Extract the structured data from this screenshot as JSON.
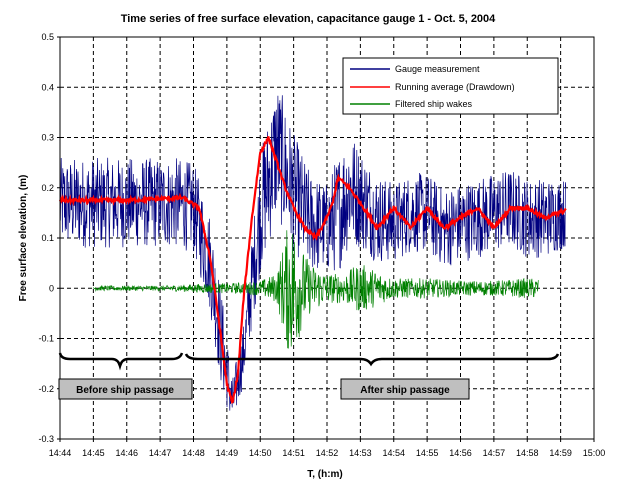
{
  "chart_data": {
    "type": "line",
    "title": "Time series of free surface elevation, capacitance gauge 1 - Oct. 5,  2004",
    "xlabel": "T, (h:m)",
    "ylabel": "Free surface elevation, (m)",
    "xlim": [
      "14:44",
      "15:00"
    ],
    "ylim": [
      -0.3,
      0.5
    ],
    "x_ticks": [
      "14:44",
      "14:45",
      "14:46",
      "14:47",
      "14:48",
      "14:49",
      "14:50",
      "14:51",
      "14:52",
      "14:53",
      "14:54",
      "14:55",
      "14:56",
      "14:57",
      "14:58",
      "14:59",
      "15:00"
    ],
    "y_ticks": [
      "0.5",
      "0.4",
      "0.3",
      "0.2",
      "0.1",
      "0",
      "-0.1",
      "-0.2",
      "-0.3"
    ],
    "grid": "dashed",
    "legend_position": "top-right",
    "series": [
      {
        "name": "Gauge measurement",
        "color": "#000080",
        "x": [
          "14:44",
          "14:46",
          "14:47:30",
          "14:48",
          "14:48:30",
          "14:48:50",
          "14:49:10",
          "14:49:30",
          "14:50",
          "14:50:30",
          "14:51",
          "14:51:30",
          "14:52",
          "14:52:20",
          "14:52:40",
          "14:53",
          "14:53:30",
          "14:54",
          "14:54:30",
          "14:55",
          "14:55:30",
          "14:56",
          "14:56:30",
          "14:57",
          "14:57:30",
          "14:58",
          "14:58:30",
          "14:59:10"
        ],
        "values": [
          0.17,
          0.17,
          0.17,
          0.16,
          0.05,
          -0.1,
          -0.23,
          -0.13,
          0.15,
          0.28,
          0.19,
          0.13,
          0.12,
          0.15,
          0.2,
          0.18,
          0.14,
          0.13,
          0.15,
          0.15,
          0.12,
          0.13,
          0.14,
          0.15,
          0.16,
          0.14,
          0.14,
          0.15
        ],
        "envelope": [
          0.09,
          0.09,
          0.09,
          0.09,
          0.1,
          0.1,
          0.05,
          0.06,
          0.12,
          0.14,
          0.12,
          0.1,
          0.09,
          0.12,
          0.12,
          0.1,
          0.09,
          0.08,
          0.08,
          0.08,
          0.08,
          0.08,
          0.08,
          0.08,
          0.08,
          0.08,
          0.08,
          0.07
        ]
      },
      {
        "name": "Running average (Drawdown)",
        "color": "#ff0000",
        "x": [
          "14:44",
          "14:45",
          "14:46",
          "14:47",
          "14:47:40",
          "14:48:10",
          "14:48:30",
          "14:48:45",
          "14:49",
          "14:49:10",
          "14:49:20",
          "14:49:30",
          "14:49:45",
          "14:50",
          "14:50:15",
          "14:50:30",
          "14:50:45",
          "14:51",
          "14:51:20",
          "14:51:40",
          "14:52",
          "14:52:10",
          "14:52:20",
          "14:52:40",
          "14:53",
          "14:53:30",
          "14:54",
          "14:54:30",
          "14:55",
          "14:55:30",
          "14:56",
          "14:56:30",
          "14:57",
          "14:57:30",
          "14:58",
          "14:58:30",
          "14:59:10"
        ],
        "values": [
          0.175,
          0.175,
          0.175,
          0.178,
          0.18,
          0.16,
          0.06,
          -0.06,
          -0.19,
          -0.23,
          -0.17,
          -0.02,
          0.14,
          0.27,
          0.3,
          0.25,
          0.2,
          0.16,
          0.12,
          0.1,
          0.14,
          0.17,
          0.22,
          0.2,
          0.17,
          0.12,
          0.16,
          0.12,
          0.16,
          0.12,
          0.14,
          0.16,
          0.12,
          0.16,
          0.16,
          0.14,
          0.155
        ]
      },
      {
        "name": "Filtered ship wakes",
        "color": "#008000",
        "x": [
          "14:45",
          "14:46",
          "14:47",
          "14:48",
          "14:48:30",
          "14:49",
          "14:49:30",
          "14:50",
          "14:50:30",
          "14:50:50",
          "14:51",
          "14:51:15",
          "14:51:30",
          "14:52",
          "14:52:30",
          "14:53",
          "14:54",
          "14:55",
          "14:56",
          "14:57",
          "14:58",
          "14:58:20"
        ],
        "values": [
          0,
          0,
          0,
          0,
          0,
          0,
          0,
          0,
          0,
          0,
          0,
          0,
          0,
          0,
          0,
          0,
          0,
          0,
          0,
          0,
          0,
          0
        ],
        "envelope": [
          0.005,
          0.005,
          0.005,
          0.008,
          0.01,
          0.01,
          0.012,
          0.015,
          0.03,
          0.13,
          0.14,
          0.08,
          0.05,
          0.03,
          0.03,
          0.05,
          0.02,
          0.02,
          0.015,
          0.015,
          0.02,
          0.02
        ]
      }
    ],
    "annotations": [
      "Before ship passage",
      "After ship passage"
    ]
  }
}
